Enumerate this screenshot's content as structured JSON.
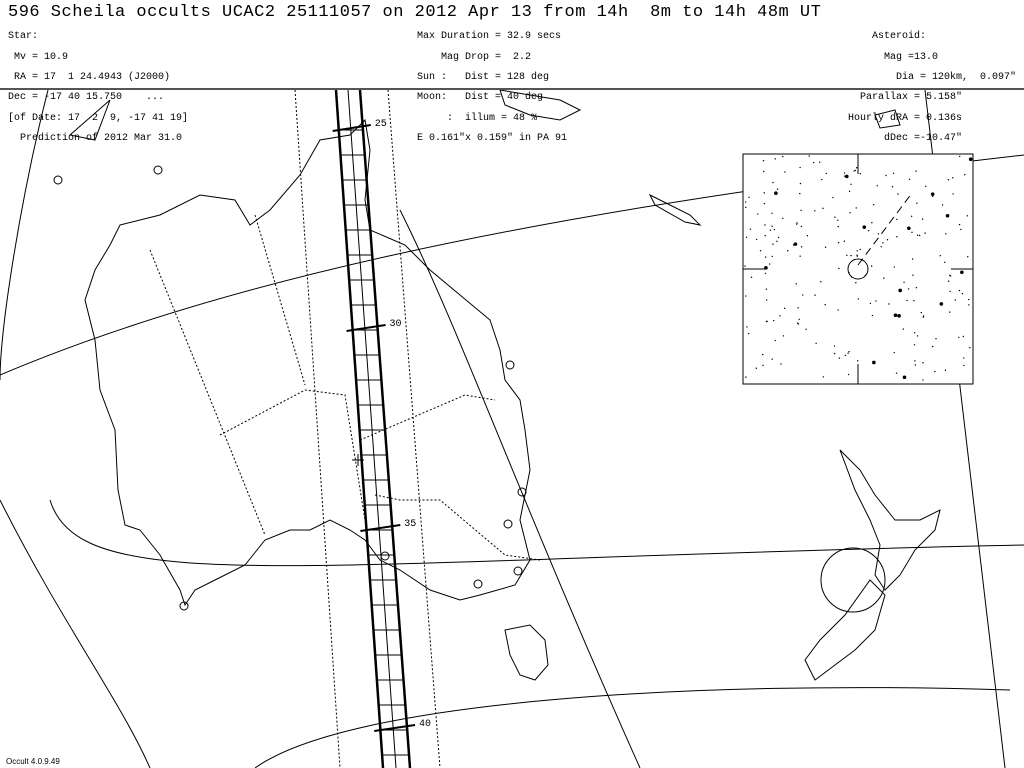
{
  "title": "596 Scheila occults UCAC2 25111057 on 2012 Apr 13 from 14h  8m to 14h 48m UT",
  "star": {
    "heading": "Star:",
    "mv": " Mv = 10.9",
    "ra": " RA = 17  1 24.4943 (J2000)",
    "dec": "Dec = -17 40 15.750    ...",
    "of_date": "[of Date: 17  2  9, -17 41 19]",
    "prediction": "  Prediction of 2012 Mar 31.0"
  },
  "event": {
    "max_duration": "Max Duration = 32.9 secs",
    "mag_drop": "    Mag Drop =  2.2",
    "sun": "Sun :   Dist = 128 deg",
    "moon": "Moon:   Dist = 40 deg",
    "illum": "     :  illum = 48 %",
    "ellipse": "E 0.161\"x 0.159\" in PA 91"
  },
  "asteroid": {
    "heading": "Asteroid:",
    "mag": "Mag =13.0",
    "dia": "Dia = 120km,  0.097\"",
    "parallax": "Parallax = 5.158\"",
    "hourly_dra": "Hourly dRA = 0.136s",
    "ddec": "dDec =-10.47\""
  },
  "path_ticks": [
    "25",
    "30",
    "35",
    "40"
  ],
  "version": "Occult 4.0.9.49"
}
